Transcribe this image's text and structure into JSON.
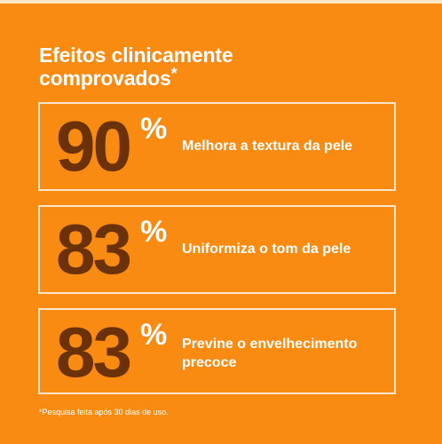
{
  "heading": {
    "line1": "Efeitos clinicamente",
    "line2": "comprovados",
    "asterisk": "*"
  },
  "stats": [
    {
      "number": "90",
      "percent": "%",
      "label": "Melhora a textura da pele"
    },
    {
      "number": "83",
      "percent": "%",
      "label": "Uniformiza o tom da pele"
    },
    {
      "number": "83",
      "percent": "%",
      "label": "Previne o envelhecimento precoce"
    }
  ],
  "footnote": "*Pesquisa feita após 30 dias de uso.",
  "colors": {
    "background": "#f98b13",
    "number": "#6b3209",
    "text": "#ffffff",
    "border": "#fde6cc"
  }
}
